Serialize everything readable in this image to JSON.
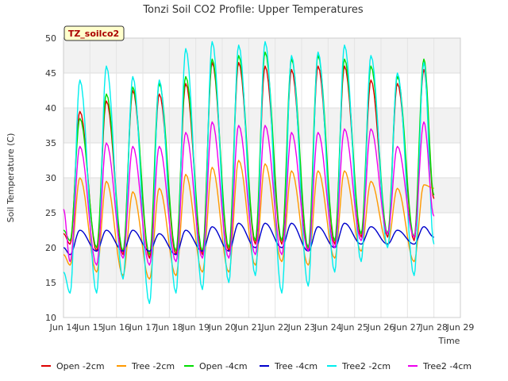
{
  "chart_data": {
    "type": "line",
    "title": "Tonzi Soil CO2 Profile: Upper Temperatures",
    "xlabel": "Time",
    "ylabel": "Soil Temperature (C)",
    "badge": "TZ_soilco2",
    "xlim": [
      14,
      29
    ],
    "ylim": [
      10,
      50
    ],
    "y_ticks": [
      10,
      15,
      20,
      25,
      30,
      35,
      40,
      45,
      50
    ],
    "x_ticks": [
      {
        "value": 14,
        "label": "Jun 14"
      },
      {
        "value": 15,
        "label": "Jun 15"
      },
      {
        "value": 16,
        "label": "Jun 16"
      },
      {
        "value": 17,
        "label": "Jun 17"
      },
      {
        "value": 18,
        "label": "Jun 18"
      },
      {
        "value": 19,
        "label": "Jun 19"
      },
      {
        "value": 20,
        "label": "Jun 20"
      },
      {
        "value": 21,
        "label": "Jun 21"
      },
      {
        "value": 22,
        "label": "Jun 22"
      },
      {
        "value": 23,
        "label": "Jun 23"
      },
      {
        "value": 24,
        "label": "Jun 24"
      },
      {
        "value": 25,
        "label": "Jun 25"
      },
      {
        "value": 26,
        "label": "Jun 26"
      },
      {
        "value": 27,
        "label": "Jun 27"
      },
      {
        "value": 28,
        "label": "Jun 28"
      },
      {
        "value": 29,
        "label": "Jun 29"
      }
    ],
    "grid": true,
    "banded_background": true,
    "legend_position": "bottom",
    "peak_day_offset": 0.62,
    "series": [
      {
        "name": "Open -2cm",
        "color": "#dd0000",
        "mins": [
          20.5,
          19.5,
          19.0,
          18.5,
          19.0,
          19.0,
          19.5,
          20.5,
          20.5,
          19.5,
          20.5,
          21.5,
          21.5,
          21.0
        ],
        "maxs": [
          39.5,
          41.0,
          42.5,
          42.0,
          43.5,
          46.5,
          46.5,
          46.0,
          45.5,
          46.0,
          46.0,
          44.0,
          43.5,
          45.5
        ],
        "start": 22.0,
        "end": 27.0
      },
      {
        "name": "Tree -2cm",
        "color": "#ff9900",
        "mins": [
          17.5,
          16.5,
          16.0,
          15.5,
          16.0,
          16.5,
          16.5,
          17.5,
          18.0,
          17.5,
          18.5,
          19.5,
          20.5,
          18.0
        ],
        "maxs": [
          30.0,
          29.5,
          28.0,
          28.5,
          30.5,
          31.5,
          32.5,
          32.0,
          31.0,
          31.0,
          31.0,
          29.5,
          28.5,
          29.0
        ],
        "start": 19.0,
        "end": 28.5
      },
      {
        "name": "Open -4cm",
        "color": "#00dd00",
        "mins": [
          21.0,
          20.0,
          19.5,
          19.0,
          19.5,
          19.5,
          20.0,
          21.0,
          21.0,
          20.0,
          21.0,
          22.0,
          22.0,
          21.5
        ],
        "maxs": [
          38.5,
          42.0,
          43.0,
          43.5,
          44.5,
          47.0,
          47.5,
          48.0,
          47.0,
          47.5,
          47.0,
          46.0,
          44.5,
          47.0
        ],
        "start": 22.5,
        "end": 27.5
      },
      {
        "name": "Tree -4cm",
        "color": "#0000cc",
        "mins": [
          19.0,
          19.5,
          19.5,
          19.5,
          19.0,
          19.5,
          19.5,
          20.0,
          20.0,
          19.5,
          20.0,
          20.5,
          20.5,
          20.5
        ],
        "maxs": [
          22.5,
          22.5,
          22.5,
          22.0,
          22.5,
          23.0,
          23.5,
          23.5,
          23.5,
          23.0,
          23.5,
          23.0,
          22.5,
          23.0
        ],
        "start": 20.0,
        "end": 21.5
      },
      {
        "name": "Tree2 -2cm",
        "color": "#00eeee",
        "mins": [
          13.5,
          13.5,
          15.5,
          12.0,
          13.5,
          14.0,
          15.0,
          16.0,
          13.5,
          14.5,
          16.5,
          18.0,
          20.0,
          16.0
        ],
        "maxs": [
          44.0,
          46.0,
          44.5,
          44.0,
          48.5,
          49.5,
          49.0,
          49.5,
          47.5,
          48.0,
          49.0,
          47.5,
          45.0,
          46.5
        ],
        "start": 16.5,
        "end": 20.5
      },
      {
        "name": "Tree2 -4cm",
        "color": "#ee00ee",
        "mins": [
          18.0,
          17.5,
          18.5,
          17.5,
          18.0,
          18.5,
          18.5,
          19.0,
          19.0,
          19.5,
          20.0,
          21.0,
          22.0,
          21.5
        ],
        "maxs": [
          34.5,
          35.0,
          34.5,
          34.5,
          36.5,
          38.0,
          37.5,
          37.5,
          36.5,
          36.5,
          37.0,
          37.0,
          34.5,
          38.0
        ],
        "start": 25.5,
        "end": 24.5
      }
    ]
  }
}
